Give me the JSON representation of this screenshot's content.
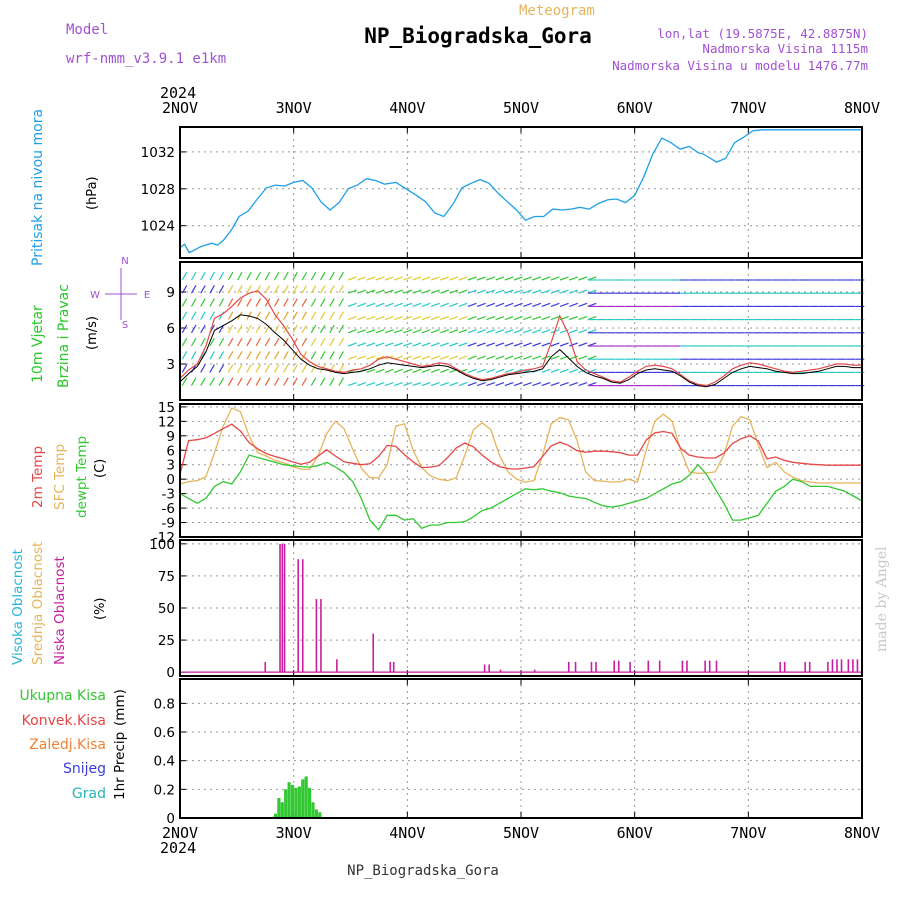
{
  "header": {
    "model_label": "Model",
    "model_name": "wrf-nmm_v3.9.1  e1km",
    "chart_kind": "Meteogram",
    "station": "NP_Biogradska_Gora",
    "lonlat": "lon,lat (19.5875E, 42.8875N)",
    "elevation": "Nadmorska Visina 1115m",
    "model_elevation": "Nadmorska Visina u modelu 1476.77m",
    "footer_station": "NP_Biogradska_Gora",
    "watermark": "made by Angel"
  },
  "colors": {
    "pressure": "#1ea0e6",
    "temp": "#e64646",
    "sfc": "#e6b45a",
    "dewpt": "#32c832",
    "low_cloud": "#c81ea0",
    "high_cloud": "#28b4dc",
    "mid_cloud": "#e6b45a",
    "precip": "#32c832",
    "wind_label": "#28c828",
    "compass": "#a050d2"
  },
  "chart_data": [
    {
      "type": "line",
      "panel": "pressure",
      "ylabel": "Pritisak na nivou mora",
      "unit": "(hPa)",
      "x_ticks": [
        "2NOV",
        "3NOV",
        "4NOV",
        "5NOV",
        "6NOV",
        "7NOV",
        "8NOV"
      ],
      "x_year": "2024",
      "xlim": [
        0,
        6
      ],
      "ylim": [
        1020.5,
        1034.7
      ],
      "yticks": [
        1024,
        1028,
        1032
      ],
      "grid": true,
      "x": [
        0,
        0.04,
        0.08,
        0.12,
        0.16,
        0.2,
        0.28,
        0.33,
        0.38,
        0.45,
        0.52,
        0.6,
        0.68,
        0.76,
        0.84,
        0.92,
        1.0,
        1.08,
        1.16,
        1.24,
        1.32,
        1.4,
        1.48,
        1.56,
        1.64,
        1.72,
        1.8,
        1.9,
        2.0,
        2.08,
        2.16,
        2.24,
        2.32,
        2.4,
        2.48,
        2.56,
        2.64,
        2.72,
        2.8,
        2.88,
        2.96,
        3.04,
        3.12,
        3.2,
        3.28,
        3.36,
        3.44,
        3.52,
        3.6,
        3.68,
        3.76,
        3.84,
        3.92,
        4.0,
        4.08,
        4.16,
        4.24,
        4.32,
        4.4,
        4.48,
        4.56,
        4.6,
        4.64,
        4.72,
        4.8,
        4.88,
        4.96,
        5.04,
        5.12,
        5.2,
        5.28,
        5.36,
        5.44,
        5.52,
        5.6,
        5.68,
        5.76,
        5.84,
        5.92,
        6.0
      ],
      "series": [
        {
          "values": [
            1021.6,
            1022.0,
            1021.1,
            1021.3,
            1021.6,
            1021.8,
            1022.1,
            1021.9,
            1022.4,
            1023.5,
            1025.0,
            1025.6,
            1026.9,
            1028.1,
            1028.4,
            1028.3,
            1028.7,
            1028.9,
            1028.1,
            1026.6,
            1025.7,
            1026.5,
            1028.0,
            1028.4,
            1029.1,
            1028.9,
            1028.5,
            1028.7,
            1027.9,
            1027.3,
            1026.6,
            1025.4,
            1025.0,
            1026.3,
            1028.1,
            1028.6,
            1029.0,
            1028.6,
            1027.5,
            1026.6,
            1025.7,
            1024.6,
            1025.0,
            1025.0,
            1025.8,
            1025.7,
            1025.8,
            1026.0,
            1025.8,
            1026.4,
            1026.8,
            1026.9,
            1026.5,
            1027.3,
            1029.3,
            1031.8,
            1033.5,
            1033.0,
            1032.3,
            1032.6,
            1031.9,
            1031.8,
            1031.5,
            1030.9,
            1031.3,
            1033.0,
            1033.6,
            1034.3,
            1034.7,
            1034.9,
            1035.1,
            1035.2,
            1035.3,
            1035.4,
            1035.4,
            1035.4,
            1035.5,
            1035.6,
            1035.6,
            1035.6
          ]
        }
      ]
    },
    {
      "type": "line",
      "panel": "wind",
      "ylabel": [
        "10m Vjetar",
        "Brzina i Pravac"
      ],
      "unit": "(m/s)",
      "xlim": [
        0,
        6
      ],
      "ylim": [
        0,
        11.5
      ],
      "yticks": [
        3,
        6,
        9
      ],
      "compass": [
        "W",
        "E",
        "N",
        "S"
      ],
      "barbs": "wind direction arrows, colored by speed",
      "series": [
        {
          "name": "speed",
          "values": [
            1.8,
            2.5,
            3.0,
            4.5,
            6.8,
            7.2,
            7.8,
            8.5,
            8.9,
            9.1,
            8.4,
            7.1,
            6.2,
            5.1,
            3.8,
            3.2,
            2.8,
            2.6,
            2.4,
            2.3,
            2.5,
            2.6,
            2.9,
            3.4,
            3.6,
            3.4,
            3.2,
            3.0,
            2.8,
            2.9,
            3.1,
            3.0,
            2.6,
            2.2,
            1.9,
            1.7,
            1.8,
            2.0,
            2.2,
            2.3,
            2.5,
            2.6,
            2.8,
            4.8,
            7.0,
            5.5,
            3.2,
            2.5,
            2.2,
            1.9,
            1.6,
            1.5,
            1.9,
            2.4,
            2.8,
            2.9,
            2.8,
            2.6,
            2.1,
            1.6,
            1.3,
            1.2,
            1.5,
            2.0,
            2.6,
            2.9,
            3.1,
            3.0,
            2.8,
            2.6,
            2.4,
            2.3,
            2.4,
            2.5,
            2.6,
            2.8,
            3.0,
            3.0,
            2.9,
            2.9
          ]
        },
        {
          "name": "gust",
          "values": [
            1.5,
            2.2,
            2.8,
            4.0,
            5.8,
            6.2,
            6.6,
            7.1,
            7.0,
            6.8,
            6.3,
            5.6,
            5.0,
            4.2,
            3.4,
            2.9,
            2.6,
            2.5,
            2.3,
            2.2,
            2.3,
            2.4,
            2.6,
            2.9,
            3.1,
            3.0,
            2.9,
            2.8,
            2.7,
            2.8,
            2.9,
            2.8,
            2.5,
            2.1,
            1.8,
            1.6,
            1.7,
            1.9,
            2.1,
            2.2,
            2.3,
            2.4,
            2.6,
            3.6,
            4.2,
            3.5,
            2.8,
            2.3,
            2.0,
            1.8,
            1.5,
            1.4,
            1.7,
            2.2,
            2.5,
            2.6,
            2.5,
            2.4,
            2.0,
            1.5,
            1.2,
            1.1,
            1.3,
            1.8,
            2.3,
            2.6,
            2.8,
            2.7,
            2.6,
            2.4,
            2.3,
            2.2,
            2.2,
            2.3,
            2.4,
            2.6,
            2.8,
            2.8,
            2.7,
            2.7
          ]
        }
      ]
    },
    {
      "type": "line",
      "panel": "temperature",
      "ylabel": [
        "2m Temp",
        "SFC Temp",
        "dewpt Temp"
      ],
      "unit": "(C)",
      "xlim": [
        0,
        6
      ],
      "ylim": [
        -12,
        15.6
      ],
      "yticks": [
        -12,
        -9,
        -6,
        -3,
        0,
        3,
        6,
        9,
        12,
        15
      ],
      "grid": true,
      "series": [
        {
          "name": "2m Temp",
          "values": [
            1,
            8,
            8.2,
            8.6,
            9.5,
            10.5,
            11.4,
            10,
            7.6,
            6.3,
            5.3,
            4.7,
            4.2,
            3.6,
            3.1,
            3.5,
            4.8,
            6.1,
            4.8,
            3.6,
            3.3,
            3,
            3.2,
            4.7,
            7,
            6.8,
            5.1,
            3.6,
            2.4,
            2.5,
            2.8,
            4.5,
            6.5,
            7.5,
            6.7,
            5,
            3.6,
            2.6,
            2.2,
            2.1,
            2.3,
            2.6,
            4.7,
            6.9,
            7.7,
            7.0,
            5.9,
            5.6,
            5.8,
            5.8,
            5.7,
            5.5,
            5.0,
            5.0,
            8.1,
            9.6,
            9.9,
            9.5,
            6.4,
            5.0,
            4.6,
            4.4,
            4.4,
            5.4,
            7.4,
            8.4,
            9.0,
            7.9,
            4.2,
            4.6,
            3.9,
            3.5,
            3.3,
            3.1,
            3.0,
            2.9,
            2.9,
            2.9,
            2.9,
            2.9
          ]
        },
        {
          "name": "SFC Temp",
          "values": [
            -1,
            -0.5,
            -0.3,
            0.5,
            5.5,
            11,
            14.8,
            14,
            9,
            5.5,
            4.8,
            3.9,
            3.4,
            2.6,
            2.1,
            2.0,
            4.8,
            9.5,
            12.0,
            10.5,
            6.2,
            2.3,
            0.3,
            0.3,
            3,
            11,
            11.5,
            6,
            2.4,
            0.7,
            0.0,
            -0.3,
            0.3,
            5,
            10.3,
            11.7,
            10.3,
            5,
            1.5,
            0.0,
            -0.6,
            -0.3,
            5,
            11.5,
            12.8,
            12.3,
            8.0,
            1.5,
            -0.3,
            -0.4,
            -0.6,
            -0.5,
            0.0,
            -0.6,
            6,
            12,
            13.5,
            12,
            6,
            1.5,
            1.2,
            1.3,
            1.5,
            5,
            11,
            13,
            12.3,
            7.0,
            2.4,
            3.5,
            1.5,
            0.4,
            -0.3,
            -0.6,
            -0.8,
            -0.8,
            -0.8,
            -0.8,
            -0.8,
            -0.8
          ]
        },
        {
          "name": "dewpt Temp",
          "values": [
            -3,
            -4,
            -5,
            -4,
            -1.5,
            -0.5,
            -1,
            1.5,
            5,
            4.5,
            4,
            3.5,
            3,
            2.8,
            2.6,
            2.5,
            2.8,
            3.5,
            2.5,
            1.4,
            -0.5,
            -4,
            -8.5,
            -10.5,
            -7.5,
            -7.5,
            -8.5,
            -8.2,
            -10.2,
            -9.5,
            -9.5,
            -9.0,
            -9.0,
            -8.8,
            -7.8,
            -6.5,
            -6.0,
            -5.0,
            -4.0,
            -3.0,
            -2.0,
            -2.2,
            -2.0,
            -2.5,
            -2.8,
            -3.5,
            -3.8,
            -4.0,
            -4.8,
            -5.5,
            -5.8,
            -5.5,
            -5.0,
            -4.5,
            -4.0,
            -3.0,
            -2.0,
            -1.0,
            -0.5,
            0.8,
            3.0,
            1.0,
            -2.0,
            -5.0,
            -8.5,
            -8.5,
            -8.0,
            -7.5,
            -5.0,
            -2.5,
            -1.5,
            0.0,
            -0.5,
            -1.5,
            -1.5,
            -1.5,
            -2.0,
            -2.5,
            -3.5,
            -4.5
          ]
        }
      ]
    },
    {
      "type": "bar",
      "panel": "cloud",
      "ylabel": [
        "Visoka Oblacnost",
        "Srednja Oblacnost",
        "Niska Oblacnost"
      ],
      "unit": "(%)",
      "xlim": [
        0,
        6
      ],
      "ylim": [
        -3,
        103
      ],
      "yticks": [
        0,
        25,
        50,
        75,
        100
      ],
      "grid": true,
      "x": [
        0.75,
        0.88,
        0.9,
        0.92,
        1.04,
        1.08,
        1.2,
        1.24,
        1.38,
        1.7,
        1.85,
        1.88,
        2.68,
        2.72,
        2.82,
        3.12,
        3.42,
        3.48,
        3.62,
        3.66,
        3.82,
        3.86,
        3.96,
        4.12,
        4.22,
        4.42,
        4.46,
        4.62,
        4.66,
        4.72,
        5.28,
        5.32,
        5.5,
        5.54,
        5.7,
        5.74,
        5.78,
        5.82,
        5.88,
        5.92,
        5.96,
        6.0
      ],
      "values": [
        8,
        100,
        100,
        100,
        88,
        88,
        57,
        57,
        10,
        30,
        8,
        8,
        6,
        6,
        2,
        2,
        8,
        8,
        8,
        8,
        9,
        9,
        8,
        9,
        9,
        9,
        9,
        9,
        9,
        9,
        8,
        8,
        8,
        8,
        8,
        10,
        10,
        10,
        10,
        10,
        10,
        10
      ]
    },
    {
      "type": "bar",
      "panel": "precip",
      "ylabel": "1hr Precip",
      "unit": "(mm)",
      "legend": [
        "Ukupna Kisa",
        "Konvek.Kisa",
        "Zaledj.Kisa",
        "Snijeg",
        "Grad"
      ],
      "xlim": [
        0,
        6
      ],
      "ylim": [
        0,
        0.97
      ],
      "yticks": [
        0,
        0.2,
        0.4,
        0.6,
        0.8
      ],
      "grid": true,
      "x": [
        0.84,
        0.87,
        0.9,
        0.93,
        0.96,
        0.99,
        1.02,
        1.05,
        1.08,
        1.11,
        1.14,
        1.17,
        1.2,
        1.23
      ],
      "values": [
        0.03,
        0.14,
        0.11,
        0.2,
        0.25,
        0.23,
        0.21,
        0.22,
        0.27,
        0.29,
        0.21,
        0.11,
        0.06,
        0.04
      ]
    }
  ]
}
